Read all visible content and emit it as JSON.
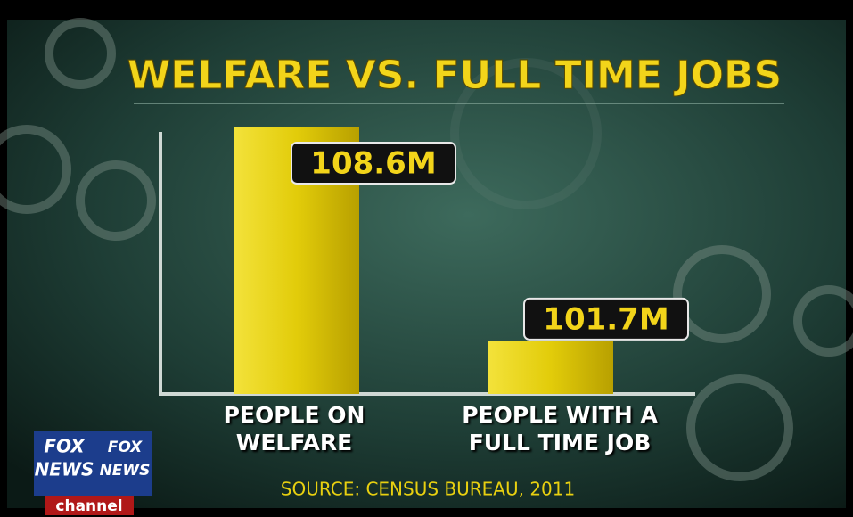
{
  "chart_data": {
    "type": "bar",
    "title": "WELFARE VS. FULL TIME JOBS",
    "categories": [
      "PEOPLE ON WELFARE",
      "PEOPLE WITH A FULL TIME JOB"
    ],
    "values": [
      108.6,
      101.7
    ],
    "value_labels": [
      "108.6M",
      "101.7M"
    ],
    "color": "#e8d40c",
    "ylim": [
      100,
      108.6
    ],
    "source": "SOURCE: CENSUS BUREAU, 2011"
  },
  "logo": {
    "words": [
      "FOX",
      "NEWS",
      "FOX",
      "NEWS"
    ],
    "channel": "channel"
  }
}
